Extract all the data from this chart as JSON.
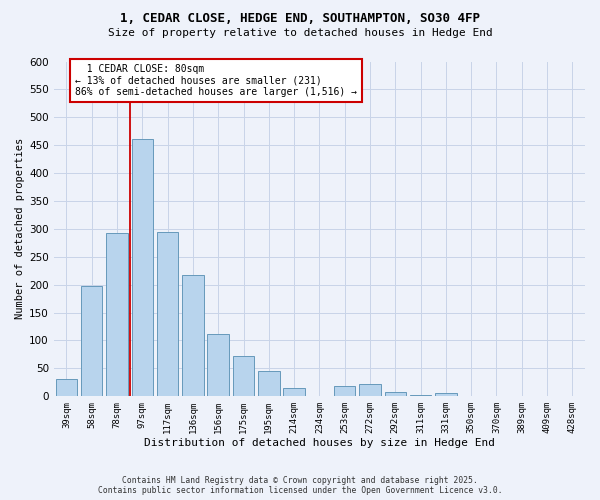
{
  "title1": "1, CEDAR CLOSE, HEDGE END, SOUTHAMPTON, SO30 4FP",
  "title2": "Size of property relative to detached houses in Hedge End",
  "xlabel": "Distribution of detached houses by size in Hedge End",
  "ylabel": "Number of detached properties",
  "bar_labels": [
    "39sqm",
    "58sqm",
    "78sqm",
    "97sqm",
    "117sqm",
    "136sqm",
    "156sqm",
    "175sqm",
    "195sqm",
    "214sqm",
    "234sqm",
    "253sqm",
    "272sqm",
    "292sqm",
    "311sqm",
    "331sqm",
    "350sqm",
    "370sqm",
    "389sqm",
    "409sqm",
    "428sqm"
  ],
  "bar_values": [
    30,
    198,
    293,
    461,
    294,
    217,
    111,
    72,
    45,
    14,
    0,
    19,
    22,
    8,
    2,
    6,
    0,
    0,
    0,
    0,
    1
  ],
  "bar_color": "#b8d4ed",
  "bar_edge_color": "#6699bb",
  "vline_color": "#cc0000",
  "vline_x_index": 2,
  "annotation_title": "1 CEDAR CLOSE: 80sqm",
  "annotation_line1": "← 13% of detached houses are smaller (231)",
  "annotation_line2": "86% of semi-detached houses are larger (1,516) →",
  "annotation_box_facecolor": "#ffffff",
  "annotation_box_edgecolor": "#cc0000",
  "ylim": [
    0,
    600
  ],
  "yticks": [
    0,
    50,
    100,
    150,
    200,
    250,
    300,
    350,
    400,
    450,
    500,
    550,
    600
  ],
  "footer1": "Contains HM Land Registry data © Crown copyright and database right 2025.",
  "footer2": "Contains public sector information licensed under the Open Government Licence v3.0.",
  "bg_color": "#eef2fa",
  "grid_color": "#c8d4e8"
}
